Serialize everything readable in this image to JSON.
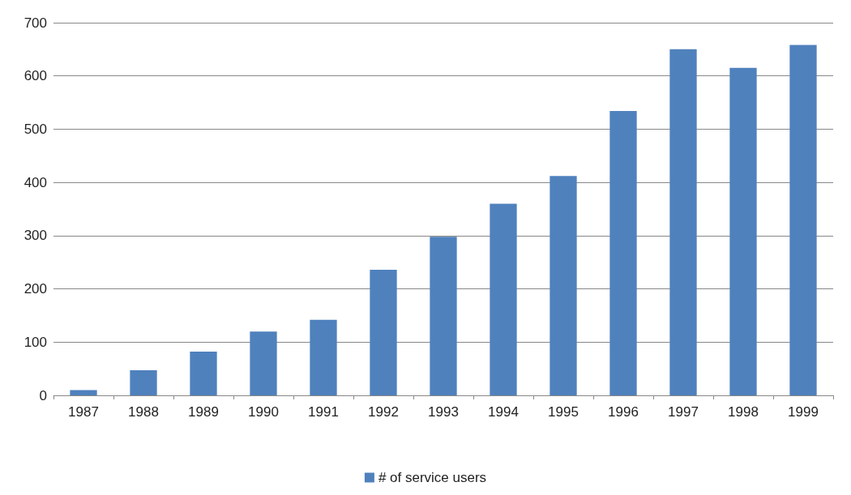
{
  "chart_data": {
    "type": "bar",
    "categories": [
      "1987",
      "1988",
      "1989",
      "1990",
      "1991",
      "1992",
      "1993",
      "1994",
      "1995",
      "1996",
      "1997",
      "1998",
      "1999"
    ],
    "series": [
      {
        "name": "# of service users",
        "color": "#4f81bd",
        "values": [
          10,
          47,
          82,
          120,
          142,
          236,
          298,
          360,
          412,
          534,
          650,
          615,
          658
        ]
      }
    ],
    "ylim": [
      0,
      700
    ],
    "yticks": [
      0,
      100,
      200,
      300,
      400,
      500,
      600,
      700
    ],
    "grid": "y",
    "legend": "bottom"
  }
}
